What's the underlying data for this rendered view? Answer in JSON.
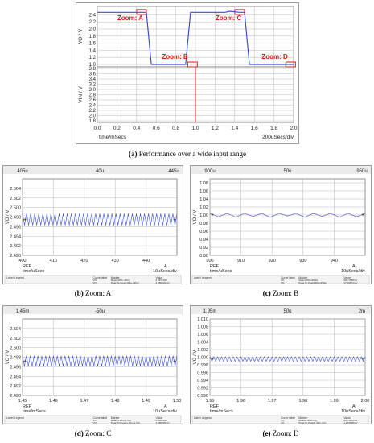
{
  "captions": {
    "a": {
      "label": "(a)",
      "text": "Performance over a wide input range"
    },
    "b": {
      "label": "(b)",
      "text": "Zoom: A"
    },
    "c": {
      "label": "(c)",
      "text": "Zoom: B"
    },
    "d": {
      "label": "(d)",
      "text": "Zoom: C"
    },
    "e": {
      "label": "(e)",
      "text": "Zoom: D"
    }
  },
  "colors": {
    "trace": "#3b4fd6",
    "marker": "#d81b1b",
    "zoom_label": "#d81b1b",
    "grid": "#b8b8b8",
    "cursor": "#d81b1b"
  },
  "chart_data": [
    {
      "id": "a-top",
      "type": "line",
      "ylabel": "VO / V",
      "ylim": [
        1.0,
        2.5
      ],
      "yticks": [
        "2.4",
        "2.2",
        "2.0",
        "1.8",
        "1.6",
        "1.4",
        "1.2",
        "1.0"
      ],
      "x": [
        0,
        0.5,
        0.55,
        0.9,
        0.95,
        1.3,
        1.35,
        1.45,
        1.5,
        1.55,
        2.0
      ],
      "values": [
        2.47,
        2.47,
        1.0,
        1.0,
        2.47,
        2.47,
        2.5,
        2.47,
        2.47,
        1.0,
        1.0
      ],
      "zooms": [
        {
          "label": "Zoom: A",
          "x": 0.45,
          "y": 2.48
        },
        {
          "label": "Zoom: B",
          "x": 0.97,
          "y": 1.0
        },
        {
          "label": "Zoom: C",
          "x": 1.45,
          "y": 2.48
        },
        {
          "label": "Zoom: D",
          "x": 1.97,
          "y": 1.0
        }
      ]
    },
    {
      "id": "a-bottom",
      "type": "line",
      "ylabel": "VIN / V",
      "ylim": [
        0,
        3.8
      ],
      "yticks": [
        "3.8",
        "3.6",
        "3.4",
        "3.2",
        "3.0",
        "2.8",
        "2.6",
        "2.4",
        "2.2",
        "2.0",
        "1.8"
      ],
      "x": [
        0,
        2.0
      ],
      "values": [
        0,
        0
      ],
      "xlim": [
        0,
        2.0
      ],
      "xticks": [
        "0.0",
        "0.2",
        "0.4",
        "0.6",
        "0.8",
        "1.0",
        "1.2",
        "1.4",
        "1.6",
        "1.8",
        "2.0"
      ],
      "xlabel": "time/mSecs",
      "xscale": "200uSecs/div",
      "cursor_x": 1.0
    },
    {
      "id": "b",
      "type": "line",
      "ylabel": "VO / V",
      "ylim": [
        2.49,
        2.506
      ],
      "yticks": [
        "2.504",
        "2.502",
        "2.500",
        "2.498",
        "2.496",
        "2.494",
        "2.492",
        "2.490"
      ],
      "xticks": [
        "400",
        "410",
        "420",
        "430",
        "440"
      ],
      "xlim": [
        400,
        450
      ],
      "xlabel": "time/uSecs",
      "xscale": "10uSecs/div",
      "ref_label": "REF",
      "a_label": "A",
      "top_left": "405u",
      "top_mid": "40u",
      "top_right": "445u",
      "ripple": {
        "center": 2.4975,
        "amplitude": 0.0012,
        "cycles": 38
      },
      "legend": {
        "h1": "Label",
        "h2": "Legend",
        "h3": "Curve label",
        "h4": "Marker",
        "h5": "Value",
        "rows": [
          [
            "VO",
            "Mean(405u-445u)",
            "2.497135V"
          ],
          [
            "VO",
            "Peak To Peak(405u-445u)",
            "2.580020mV"
          ]
        ]
      }
    },
    {
      "id": "c",
      "type": "line",
      "ylabel": "VO / V",
      "ylim": [
        0.9,
        1.09
      ],
      "yticks": [
        "1.08",
        "1.06",
        "1.04",
        "1.02",
        "1.00",
        "0.98",
        "0.96",
        "0.94",
        "0.92",
        "0.90"
      ],
      "xticks": [
        "900",
        "910",
        "920",
        "930",
        "940"
      ],
      "xlim": [
        900,
        950
      ],
      "xlabel": "time/uSecs",
      "xscale": "10uSecs/div",
      "ref_label": "REF",
      "a_label": "A",
      "top_left": "900u",
      "top_mid": "50u",
      "top_right": "950u",
      "ripple": {
        "center": 1.0,
        "amplitude": 0.004,
        "cycles": 9
      },
      "legend": {
        "h1": "Label",
        "h2": "Legend",
        "h3": "Curve label",
        "h4": "Marker",
        "h5": "Value",
        "rows": [
          [
            "VO",
            "Mean(900u-950u)",
            "998.7858mV"
          ],
          [
            "VO",
            "Peak To Peak(900u-950u)",
            "17.09672mV"
          ]
        ]
      }
    },
    {
      "id": "d",
      "type": "line",
      "ylabel": "VO / V",
      "ylim": [
        2.49,
        2.506
      ],
      "yticks": [
        "2.504",
        "2.502",
        "2.500",
        "2.498",
        "2.496",
        "2.494",
        "2.492",
        "2.490"
      ],
      "xticks": [
        "1.45",
        "1.46",
        "1.47",
        "1.48",
        "1.49",
        "1.50"
      ],
      "xlim": [
        1.45,
        1.5
      ],
      "xlabel": "time/mSecs",
      "xscale": "10uSecs/div",
      "ref_label": "REF",
      "a_label": "A",
      "top_left": "1.45m",
      "top_mid": "-50u",
      "top_right": "",
      "ripple": {
        "center": 2.4972,
        "amplitude": 0.0011,
        "cycles": 40
      },
      "legend": {
        "h1": "Label",
        "h2": "Legend",
        "h3": "Curve label",
        "h4": "Marker",
        "h5": "Value",
        "rows": [
          [
            "VO",
            "Mean(1.45m-1.5m)",
            "2.496693V"
          ],
          [
            "VO",
            "Peak To Peak(1.45m-1.5m)",
            "2.285095mV"
          ]
        ]
      }
    },
    {
      "id": "e",
      "type": "line",
      "ylabel": "VO / V",
      "ylim": [
        0.99,
        1.01
      ],
      "yticks": [
        "1.010",
        "1.008",
        "1.006",
        "1.004",
        "1.002",
        "1.000",
        "0.998",
        "0.996",
        "0.994",
        "0.992",
        "0.990"
      ],
      "xticks": [
        "1.95",
        "1.96",
        "1.97",
        "1.98",
        "1.99",
        "2.00"
      ],
      "xlim": [
        1.95,
        2.0
      ],
      "xlabel": "time/mSecs",
      "xscale": "10uSecs/div",
      "ref_label": "REF",
      "a_label": "A",
      "top_left": "1.95m",
      "top_mid": "50u",
      "top_right": "2m",
      "ripple": {
        "center": 0.9995,
        "amplitude": 0.0006,
        "cycles": 40
      },
      "legend": {
        "h1": "Label",
        "h2": "Legend",
        "h3": "Curve label",
        "h4": "Marker",
        "h5": "Value",
        "rows": [
          [
            "VO",
            "Mean(1.95m-2m)",
            "999.4891mV"
          ],
          [
            "VO",
            "Peak To Peak(1.95m-2m)",
            "1.184598mV"
          ]
        ]
      }
    }
  ]
}
